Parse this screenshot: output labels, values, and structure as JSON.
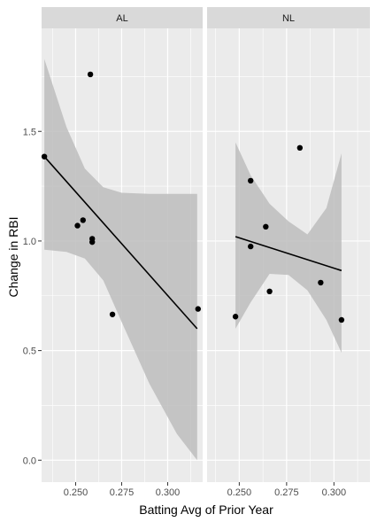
{
  "chart_data": {
    "type": "scatter",
    "xlabel": "Batting Avg of Prior Year",
    "ylabel": "Change in RBI",
    "ylim": [
      -0.1,
      1.97
    ],
    "y_ticks": [
      0.0,
      0.5,
      1.0,
      1.5
    ],
    "y_tick_labels": [
      "0.0",
      "0.5",
      "1.0",
      "1.5"
    ],
    "grid": true,
    "colors": {
      "panel_bg": "#ebebeb",
      "grid_major": "#ffffff",
      "strip_bg": "#d9d9d9",
      "ribbon": "#bdbdbd",
      "point": "#000000",
      "line": "#000000",
      "text": "#000000",
      "tick_text": "#4d4d4d"
    },
    "panels": [
      {
        "strip": "AL",
        "xlim": [
          0.2315,
          0.319
        ],
        "x_ticks": [
          0.25,
          0.275,
          0.3
        ],
        "x_tick_labels": [
          "0.250",
          "0.275",
          "0.300"
        ],
        "points": [
          {
            "x": 0.233,
            "y": 1.385
          },
          {
            "x": 0.258,
            "y": 1.76
          },
          {
            "x": 0.251,
            "y": 1.07
          },
          {
            "x": 0.254,
            "y": 1.095
          },
          {
            "x": 0.259,
            "y": 1.01
          },
          {
            "x": 0.259,
            "y": 0.995
          },
          {
            "x": 0.27,
            "y": 0.665
          },
          {
            "x": 0.3165,
            "y": 0.69
          }
        ],
        "fit": {
          "x": [
            0.233,
            0.316
          ],
          "y": [
            1.385,
            0.6
          ]
        },
        "ribbon": {
          "x": [
            0.233,
            0.245,
            0.255,
            0.265,
            0.275,
            0.29,
            0.305,
            0.316
          ],
          "lower": [
            0.96,
            0.95,
            0.92,
            0.82,
            0.63,
            0.35,
            0.12,
            0.0
          ],
          "upper": [
            1.83,
            1.52,
            1.33,
            1.245,
            1.22,
            1.215,
            1.215,
            1.215
          ]
        }
      },
      {
        "strip": "NL",
        "xlim": [
          0.233,
          0.319
        ],
        "x_ticks": [
          0.25,
          0.275,
          0.3
        ],
        "x_tick_labels": [
          "0.250",
          "0.275",
          "0.300"
        ],
        "points": [
          {
            "x": 0.248,
            "y": 0.655
          },
          {
            "x": 0.256,
            "y": 1.275
          },
          {
            "x": 0.256,
            "y": 0.975
          },
          {
            "x": 0.264,
            "y": 1.065
          },
          {
            "x": 0.266,
            "y": 0.77
          },
          {
            "x": 0.282,
            "y": 1.425
          },
          {
            "x": 0.293,
            "y": 0.81
          },
          {
            "x": 0.304,
            "y": 0.64
          }
        ],
        "fit": {
          "x": [
            0.248,
            0.304
          ],
          "y": [
            1.02,
            0.865
          ]
        },
        "ribbon": {
          "x": [
            0.248,
            0.256,
            0.266,
            0.276,
            0.286,
            0.296,
            0.304
          ],
          "lower": [
            0.6,
            0.72,
            0.85,
            0.845,
            0.775,
            0.64,
            0.49
          ],
          "upper": [
            1.45,
            1.3,
            1.17,
            1.09,
            1.03,
            1.15,
            1.4
          ]
        }
      }
    ]
  }
}
